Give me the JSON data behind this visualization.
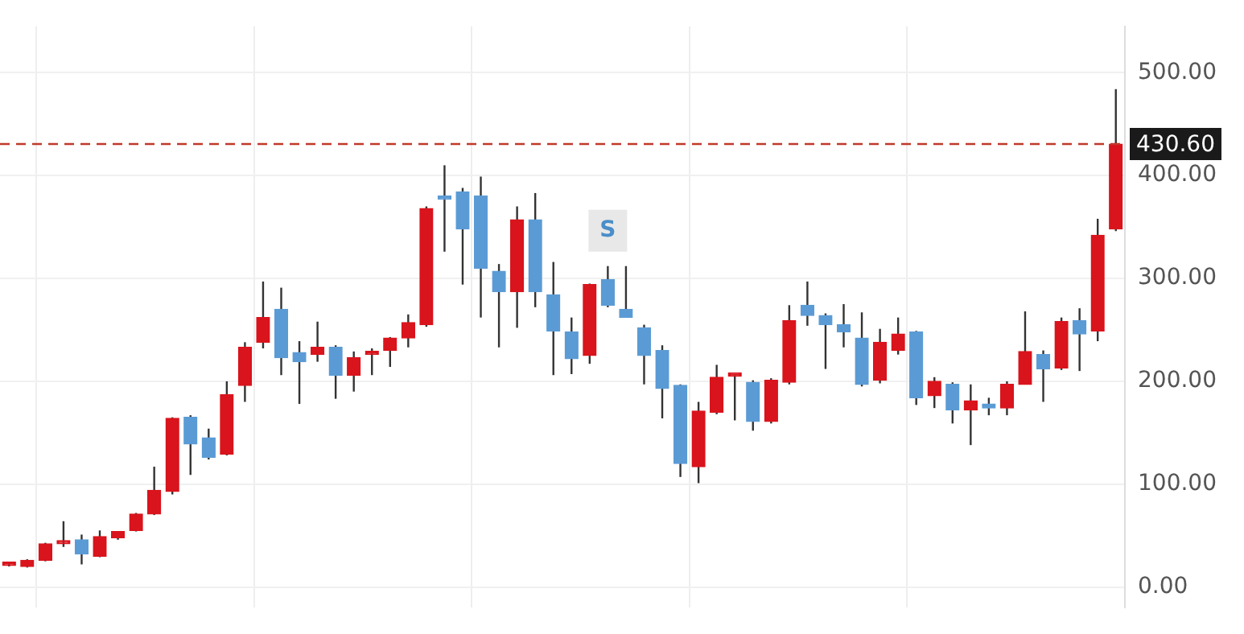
{
  "chart_data": {
    "type": "candlestick",
    "categories": [
      null,
      null,
      null,
      null,
      null,
      null,
      null,
      null,
      null,
      null,
      null,
      null,
      null,
      null,
      null,
      null,
      null,
      null,
      null,
      null,
      null,
      null,
      null,
      null,
      null,
      null,
      null,
      null,
      null,
      null,
      null,
      null,
      null,
      null,
      null,
      null,
      null,
      null,
      null,
      null,
      null,
      null,
      null,
      null,
      null,
      null,
      null,
      null,
      null,
      null,
      null,
      null,
      null,
      null,
      null,
      null,
      null,
      null,
      null,
      null,
      null,
      null
    ],
    "ohlc": [
      [
        21,
        23,
        20,
        22
      ],
      [
        20,
        27,
        19,
        26
      ],
      [
        26,
        43,
        25,
        42
      ],
      [
        42,
        64,
        39,
        43
      ],
      [
        46,
        51,
        22,
        32
      ],
      [
        30,
        55,
        29,
        49
      ],
      [
        48,
        54,
        46,
        54
      ],
      [
        55,
        72,
        54,
        71
      ],
      [
        71,
        117,
        70,
        94
      ],
      [
        93,
        165,
        90,
        164
      ],
      [
        165,
        167,
        109,
        139
      ],
      [
        145,
        154,
        124,
        126
      ],
      [
        129,
        200,
        128,
        187
      ],
      [
        196,
        238,
        180,
        233
      ],
      [
        238,
        297,
        232,
        262
      ],
      [
        270,
        291,
        206,
        223
      ],
      [
        228,
        239,
        178,
        219
      ],
      [
        226,
        258,
        219,
        233
      ],
      [
        233,
        235,
        183,
        206
      ],
      [
        206,
        229,
        190,
        223
      ],
      [
        226,
        232,
        206,
        227
      ],
      [
        230,
        243,
        214,
        242
      ],
      [
        242,
        265,
        233,
        257
      ],
      [
        255,
        370,
        253,
        368
      ],
      [
        378,
        410,
        326,
        377
      ],
      [
        384,
        388,
        294,
        348
      ],
      [
        380,
        399,
        262,
        310
      ],
      [
        307,
        314,
        233,
        287
      ],
      [
        287,
        370,
        252,
        357
      ],
      [
        357,
        383,
        272,
        287
      ],
      [
        284,
        316,
        206,
        249
      ],
      [
        248,
        262,
        207,
        222
      ],
      [
        225,
        295,
        217,
        294
      ],
      [
        299,
        312,
        272,
        274
      ],
      [
        270,
        312,
        262,
        262
      ],
      [
        252,
        255,
        197,
        225
      ],
      [
        230,
        235,
        164,
        193
      ],
      [
        196,
        197,
        107,
        120
      ],
      [
        117,
        180,
        101,
        171
      ],
      [
        170,
        216,
        168,
        204
      ],
      [
        205,
        206,
        162,
        206
      ],
      [
        199,
        201,
        152,
        161
      ],
      [
        161,
        203,
        159,
        201
      ],
      [
        199,
        274,
        197,
        259
      ],
      [
        274,
        297,
        254,
        264
      ],
      [
        264,
        266,
        212,
        255
      ],
      [
        255,
        275,
        233,
        248
      ],
      [
        242,
        267,
        195,
        197
      ],
      [
        201,
        251,
        198,
        238
      ],
      [
        230,
        262,
        226,
        246
      ],
      [
        248,
        249,
        177,
        184
      ],
      [
        186,
        204,
        174,
        200
      ],
      [
        197,
        199,
        159,
        172
      ],
      [
        172,
        197,
        138,
        181
      ],
      [
        178,
        184,
        167,
        174
      ],
      [
        174,
        200,
        167,
        197
      ],
      [
        197,
        268,
        197,
        229
      ],
      [
        226,
        230,
        180,
        212
      ],
      [
        213,
        262,
        211,
        258
      ],
      [
        259,
        271,
        210,
        246
      ],
      [
        249,
        358,
        239,
        342
      ],
      [
        348,
        484,
        346,
        430.6
      ]
    ],
    "colors": [
      "#d9141c",
      "#d9141c",
      "#d9141c",
      "#d9141c",
      "#5b9bd5",
      "#d9141c",
      "#d9141c",
      "#d9141c",
      "#d9141c",
      "#d9141c",
      "#5b9bd5",
      "#5b9bd5",
      "#d9141c",
      "#d9141c",
      "#d9141c",
      "#5b9bd5",
      "#5b9bd5",
      "#d9141c",
      "#5b9bd5",
      "#d9141c",
      "#d9141c",
      "#d9141c",
      "#d9141c",
      "#d9141c",
      "#5b9bd5",
      "#5b9bd5",
      "#5b9bd5",
      "#5b9bd5",
      "#d9141c",
      "#5b9bd5",
      "#5b9bd5",
      "#5b9bd5",
      "#d9141c",
      "#5b9bd5",
      "#5b9bd5",
      "#5b9bd5",
      "#5b9bd5",
      "#5b9bd5",
      "#d9141c",
      "#d9141c",
      "#d9141c",
      "#5b9bd5",
      "#d9141c",
      "#d9141c",
      "#5b9bd5",
      "#5b9bd5",
      "#5b9bd5",
      "#5b9bd5",
      "#d9141c",
      "#d9141c",
      "#5b9bd5",
      "#d9141c",
      "#5b9bd5",
      "#d9141c",
      "#5b9bd5",
      "#d9141c",
      "#d9141c",
      "#5b9bd5",
      "#d9141c",
      "#5b9bd5",
      "#d9141c",
      "#d9141c"
    ],
    "ylim": [
      -20,
      545
    ],
    "yticks": [
      {
        "value": 0,
        "label": "0.00"
      },
      {
        "value": 100,
        "label": "100.00"
      },
      {
        "value": 200,
        "label": "200.00"
      },
      {
        "value": 300,
        "label": "300.00"
      },
      {
        "value": 400,
        "label": "400.00"
      },
      {
        "value": 500,
        "label": "500.00"
      }
    ],
    "grid": true,
    "ref_lines": [
      {
        "axis": "y",
        "value": 430.6,
        "label": "430.60",
        "color": "#c0392b",
        "line_style": "dashed"
      }
    ],
    "annotations": [
      "S"
    ]
  }
}
